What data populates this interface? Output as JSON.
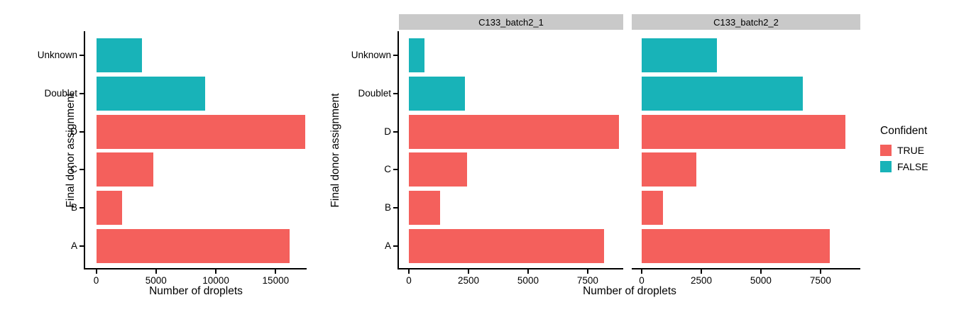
{
  "colors": {
    "confident_true": "#F4605C",
    "confident_false": "#18B3B8",
    "strip_bg": "#C9C9C9",
    "axis_line": "#000000"
  },
  "legend": {
    "title": "Confident",
    "entries": [
      {
        "label": "TRUE",
        "color": "#F4605C"
      },
      {
        "label": "FALSE",
        "color": "#18B3B8"
      }
    ]
  },
  "chart_data": {
    "type": "bar",
    "orientation": "horizontal",
    "title": "",
    "xlabel": "Number of droplets",
    "ylabel": "Final donor assignment",
    "legend_title": "Confident",
    "categories": [
      "Unknown",
      "Doublet",
      "D",
      "C",
      "B",
      "A"
    ],
    "category_confident": [
      "FALSE",
      "FALSE",
      "TRUE",
      "TRUE",
      "TRUE",
      "TRUE"
    ],
    "grid": "off",
    "legend_position": "right",
    "panels": [
      {
        "strip_label": "",
        "values": [
          3800,
          9100,
          17450,
          4750,
          2150,
          16150
        ],
        "x_ticks": [
          0,
          5000,
          10000,
          15000
        ],
        "xlim": [
          -920,
          17590
        ]
      },
      {
        "strip_label": "C133_batch2_1",
        "values": [
          650,
          2350,
          8800,
          2450,
          1300,
          8200
        ],
        "x_ticks": [
          0,
          2500,
          5000,
          7500
        ],
        "xlim": [
          -417,
          8990
        ]
      },
      {
        "strip_label": "C133_batch2_2",
        "values": [
          3150,
          6750,
          8550,
          2300,
          900,
          7900
        ],
        "x_ticks": [
          0,
          2500,
          5000,
          7500
        ],
        "xlim": [
          -417,
          9170
        ]
      }
    ]
  }
}
